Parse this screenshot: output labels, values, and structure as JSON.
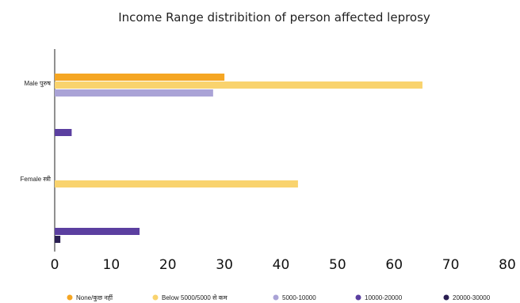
{
  "chart_data": {
    "type": "bar",
    "orientation": "horizontal",
    "title": "Income Range distribition of person affected  leprosy",
    "categories": [
      "Male पुरुष",
      "Female स्त्री"
    ],
    "series": [
      {
        "name": "None/कुछ नहीं",
        "color": "#f5a623",
        "values": [
          30,
          0
        ]
      },
      {
        "name": "Below 5000/5000 से कम",
        "color": "#f9d36e",
        "values": [
          65,
          43
        ]
      },
      {
        "name": "5000-10000",
        "color": "#aaa3d6",
        "values": [
          28,
          0
        ]
      },
      {
        "name": "10000-20000",
        "color": "#5b3fa0",
        "values": [
          3,
          15
        ]
      },
      {
        "name": "20000-30000",
        "color": "#2a1f52",
        "values": [
          0,
          1
        ]
      }
    ],
    "xlim": [
      0,
      80
    ],
    "xticks": [
      "0",
      "10",
      "20",
      "30",
      "40",
      "50",
      "60",
      "70",
      "80"
    ],
    "xlabel": "",
    "ylabel": "",
    "grid": false,
    "legend_position": "bottom"
  }
}
